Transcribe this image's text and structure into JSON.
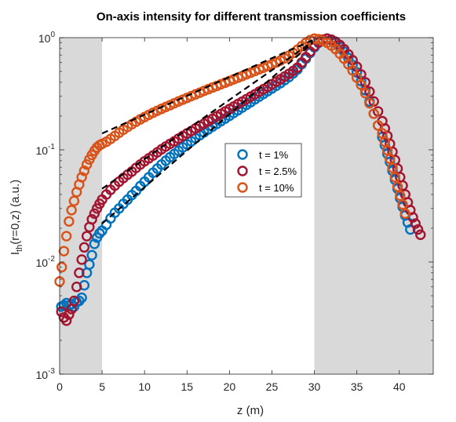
{
  "chart_data": {
    "type": "scatter",
    "title": "On-axis intensity for different transmission coefficients",
    "xlabel": "z (m)",
    "ylabel": {
      "main": "I",
      "sub": "th",
      "rest": "(r=0,z) (a.u.)"
    },
    "xlim": [
      0,
      44
    ],
    "ylim": [
      0.001,
      1
    ],
    "yscale": "log",
    "xticks": [
      "0",
      "5",
      "10",
      "15",
      "20",
      "25",
      "30",
      "35",
      "40"
    ],
    "yticks": [
      {
        "base": "10",
        "exp": "-3"
      },
      {
        "base": "10",
        "exp": "-2"
      },
      {
        "base": "10",
        "exp": "-1"
      },
      {
        "base": "10",
        "exp": "0"
      }
    ],
    "shaded_regions": [
      [
        0,
        5
      ],
      [
        30,
        44
      ]
    ],
    "shade_color": "#d9d9d9",
    "legend": {
      "placement": "center-right"
    },
    "fit_lines": [
      {
        "x": [
          5.0,
          29.8
        ],
        "y": [
          0.022,
          0.9
        ]
      },
      {
        "x": [
          5.0,
          29.8
        ],
        "y": [
          0.045,
          0.92
        ]
      },
      {
        "x": [
          5.0,
          29.8
        ],
        "y": [
          0.14,
          0.95
        ]
      }
    ],
    "series": [
      {
        "name": "t = 1%",
        "color": "#0072BD",
        "x": [
          0.2,
          0.5,
          0.8,
          1.1,
          1.4,
          1.7,
          2.0,
          2.3,
          2.6,
          2.9,
          3.2,
          3.5,
          3.8,
          4.1,
          4.4,
          4.7,
          5.0,
          5.5,
          6.0,
          6.5,
          7.0,
          7.5,
          8.0,
          8.5,
          9.0,
          9.5,
          10.0,
          10.5,
          11.0,
          11.5,
          12.0,
          12.5,
          13.0,
          13.5,
          14.0,
          14.5,
          15.0,
          15.5,
          16.0,
          16.5,
          17.0,
          17.5,
          18.0,
          18.5,
          19.0,
          19.5,
          20.0,
          20.5,
          21.0,
          21.5,
          22.0,
          22.5,
          23.0,
          23.5,
          24.0,
          24.5,
          25.0,
          25.5,
          26.0,
          26.5,
          27.0,
          27.5,
          28.0,
          28.5,
          29.0,
          29.5,
          30.0,
          30.5,
          31.0,
          31.5,
          32.0,
          32.5,
          33.0,
          33.5,
          34.0,
          34.5,
          35.0,
          35.5,
          36.0,
          36.5,
          37.0,
          37.5,
          38.0,
          38.3,
          38.6,
          38.9,
          39.2,
          39.5,
          39.8,
          40.1,
          40.4,
          40.7,
          41.0,
          41.3
        ],
        "y": [
          0.004,
          0.0041,
          0.0043,
          0.0041,
          0.0042,
          0.004,
          0.0044,
          0.0045,
          0.0048,
          0.0062,
          0.008,
          0.0095,
          0.0115,
          0.0145,
          0.0165,
          0.018,
          0.019,
          0.0215,
          0.0245,
          0.0275,
          0.03,
          0.033,
          0.036,
          0.0395,
          0.043,
          0.0475,
          0.052,
          0.057,
          0.0625,
          0.068,
          0.074,
          0.08,
          0.086,
          0.092,
          0.098,
          0.105,
          0.112,
          0.119,
          0.127,
          0.135,
          0.143,
          0.152,
          0.161,
          0.17,
          0.18,
          0.19,
          0.201,
          0.213,
          0.225,
          0.238,
          0.252,
          0.266,
          0.282,
          0.298,
          0.315,
          0.333,
          0.352,
          0.372,
          0.393,
          0.418,
          0.445,
          0.48,
          0.52,
          0.58,
          0.65,
          0.73,
          0.82,
          0.9,
          0.96,
          0.98,
          0.95,
          0.9,
          0.83,
          0.75,
          0.66,
          0.57,
          0.49,
          0.41,
          0.34,
          0.27,
          0.21,
          0.165,
          0.13,
          0.11,
          0.092,
          0.078,
          0.065,
          0.054,
          0.045,
          0.037,
          0.031,
          0.026,
          0.0225,
          0.0195
        ]
      },
      {
        "name": "t = 2.5%",
        "color": "#A2142F",
        "x": [
          0.2,
          0.5,
          0.8,
          1.1,
          1.4,
          1.7,
          2.0,
          2.3,
          2.6,
          2.9,
          3.2,
          3.5,
          3.8,
          4.1,
          4.4,
          4.7,
          5.0,
          5.5,
          6.0,
          6.5,
          7.0,
          7.5,
          8.0,
          8.5,
          9.0,
          9.5,
          10.0,
          10.5,
          11.0,
          11.5,
          12.0,
          12.5,
          13.0,
          13.5,
          14.0,
          14.5,
          15.0,
          15.5,
          16.0,
          16.5,
          17.0,
          17.5,
          18.0,
          18.5,
          19.0,
          19.5,
          20.0,
          20.5,
          21.0,
          21.5,
          22.0,
          22.5,
          23.0,
          23.5,
          24.0,
          24.5,
          25.0,
          25.5,
          26.0,
          26.5,
          27.0,
          27.5,
          28.0,
          28.5,
          29.0,
          29.5,
          30.0,
          30.5,
          31.0,
          31.5,
          32.0,
          32.5,
          33.0,
          33.5,
          34.0,
          34.5,
          35.0,
          35.5,
          36.0,
          36.5,
          37.0,
          37.5,
          38.0,
          38.3,
          38.6,
          38.9,
          39.2,
          39.5,
          39.8,
          40.1,
          40.4,
          40.7,
          41.0,
          41.3,
          41.6,
          41.9,
          42.2,
          42.5
        ],
        "y": [
          0.0036,
          0.0032,
          0.003,
          0.0034,
          0.0038,
          0.0045,
          0.006,
          0.008,
          0.0105,
          0.0135,
          0.017,
          0.0205,
          0.024,
          0.027,
          0.03,
          0.033,
          0.036,
          0.04,
          0.044,
          0.048,
          0.052,
          0.056,
          0.06,
          0.064,
          0.069,
          0.074,
          0.079,
          0.084,
          0.089,
          0.095,
          0.101,
          0.107,
          0.113,
          0.119,
          0.126,
          0.133,
          0.14,
          0.147,
          0.155,
          0.163,
          0.171,
          0.18,
          0.189,
          0.199,
          0.209,
          0.22,
          0.231,
          0.243,
          0.256,
          0.269,
          0.283,
          0.298,
          0.313,
          0.33,
          0.347,
          0.365,
          0.384,
          0.405,
          0.426,
          0.45,
          0.475,
          0.505,
          0.54,
          0.6,
          0.67,
          0.75,
          0.84,
          0.91,
          0.96,
          0.98,
          0.96,
          0.92,
          0.86,
          0.79,
          0.71,
          0.63,
          0.55,
          0.47,
          0.4,
          0.33,
          0.27,
          0.22,
          0.18,
          0.155,
          0.133,
          0.113,
          0.096,
          0.081,
          0.068,
          0.057,
          0.048,
          0.04,
          0.034,
          0.029,
          0.025,
          0.022,
          0.0195,
          0.0175
        ]
      },
      {
        "name": "t = 10%",
        "color": "#D95319",
        "x": [
          0.0,
          0.25,
          0.5,
          0.8,
          1.1,
          1.4,
          1.7,
          2.0,
          2.3,
          2.6,
          2.9,
          3.2,
          3.5,
          3.8,
          4.1,
          4.4,
          4.7,
          5.0,
          5.5,
          6.0,
          6.5,
          7.0,
          7.5,
          8.0,
          8.5,
          9.0,
          9.5,
          10.0,
          10.5,
          11.0,
          11.5,
          12.0,
          12.5,
          13.0,
          13.5,
          14.0,
          14.5,
          15.0,
          15.5,
          16.0,
          16.5,
          17.0,
          17.5,
          18.0,
          18.5,
          19.0,
          19.5,
          20.0,
          20.5,
          21.0,
          21.5,
          22.0,
          22.5,
          23.0,
          23.5,
          24.0,
          24.5,
          25.0,
          25.5,
          26.0,
          26.5,
          27.0,
          27.5,
          28.0,
          28.5,
          29.0,
          29.5,
          30.0,
          30.5,
          31.0,
          31.5,
          32.0,
          32.5,
          33.0,
          33.5,
          34.0,
          34.5,
          35.0,
          35.5,
          36.0,
          36.5,
          37.0,
          37.5,
          38.0,
          38.3,
          38.6,
          38.9,
          39.2,
          39.5,
          39.8,
          40.1,
          40.4,
          40.7
        ],
        "y": [
          0.0067,
          0.009,
          0.0125,
          0.017,
          0.023,
          0.029,
          0.035,
          0.042,
          0.049,
          0.057,
          0.065,
          0.074,
          0.082,
          0.09,
          0.098,
          0.105,
          0.11,
          0.113,
          0.118,
          0.125,
          0.133,
          0.142,
          0.151,
          0.16,
          0.169,
          0.178,
          0.187,
          0.196,
          0.205,
          0.214,
          0.223,
          0.232,
          0.241,
          0.25,
          0.26,
          0.27,
          0.28,
          0.29,
          0.301,
          0.312,
          0.323,
          0.335,
          0.347,
          0.359,
          0.371,
          0.384,
          0.397,
          0.411,
          0.425,
          0.44,
          0.455,
          0.471,
          0.487,
          0.504,
          0.522,
          0.54,
          0.559,
          0.579,
          0.6,
          0.625,
          0.655,
          0.69,
          0.73,
          0.78,
          0.84,
          0.9,
          0.95,
          0.98,
          0.97,
          0.94,
          0.9,
          0.85,
          0.79,
          0.72,
          0.65,
          0.58,
          0.51,
          0.44,
          0.38,
          0.32,
          0.26,
          0.21,
          0.165,
          0.14,
          0.118,
          0.099,
          0.083,
          0.069,
          0.057,
          0.047,
          0.039,
          0.0325,
          0.027
        ]
      }
    ]
  }
}
